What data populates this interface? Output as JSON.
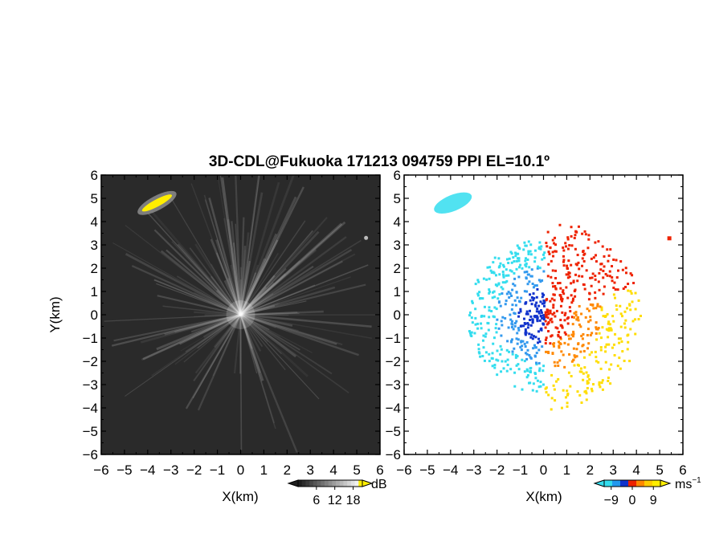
{
  "chart_data": [
    {
      "type": "heatmap",
      "title": "3D-CDL@Fukuoka 171213 094759 PPI EL=10.1º",
      "panel": "reflectivity",
      "xlabel": "X(km)",
      "ylabel": "Y(km)",
      "xlim": [
        -6,
        6
      ],
      "ylim": [
        -6,
        6
      ],
      "xticks": [
        "−6",
        "−5",
        "−4",
        "−3",
        "−2",
        "−1",
        "0",
        "1",
        "2",
        "3",
        "4",
        "5",
        "6"
      ],
      "yticks": [
        "−6",
        "−5",
        "−4",
        "−3",
        "−2",
        "−1",
        "0",
        "1",
        "2",
        "3",
        "4",
        "5",
        "6"
      ],
      "colorbar": {
        "unit": "dB",
        "ticks": [
          "6",
          "12",
          "18"
        ],
        "range": [
          0,
          21
        ]
      },
      "features": [
        {
          "x": -3.6,
          "y": 4.8,
          "value": 20
        },
        {
          "x": 5.4,
          "y": 3.3,
          "value": 8
        }
      ],
      "colors": {
        "background": "#2a2a2a",
        "strong": "#ffee00"
      }
    },
    {
      "type": "heatmap",
      "panel": "doppler-velocity",
      "xlabel": "X(km)",
      "xlim": [
        -6,
        6
      ],
      "ylim": [
        -6,
        6
      ],
      "xticks": [
        "−6",
        "−5",
        "−4",
        "−3",
        "−2",
        "−1",
        "0",
        "1",
        "2",
        "3",
        "4",
        "5",
        "6"
      ],
      "yticks": [
        "−6",
        "−5",
        "−4",
        "−3",
        "−2",
        "−1",
        "0",
        "1",
        "2",
        "3",
        "4",
        "5",
        "6"
      ],
      "colorbar": {
        "unit": "ms",
        "unit_exp": "−1",
        "ticks": [
          "−9",
          "0",
          "9"
        ],
        "range": [
          -12,
          12
        ]
      },
      "features": [
        {
          "x": -3.9,
          "y": 4.8,
          "value": -6
        },
        {
          "x": 5.4,
          "y": 3.3,
          "value": 8
        }
      ],
      "colors": {
        "negative": "#33ddee",
        "near_zero_neg": "#1133cc",
        "near_zero_pos": "#ee2200",
        "positive": "#ffdd00"
      }
    }
  ]
}
